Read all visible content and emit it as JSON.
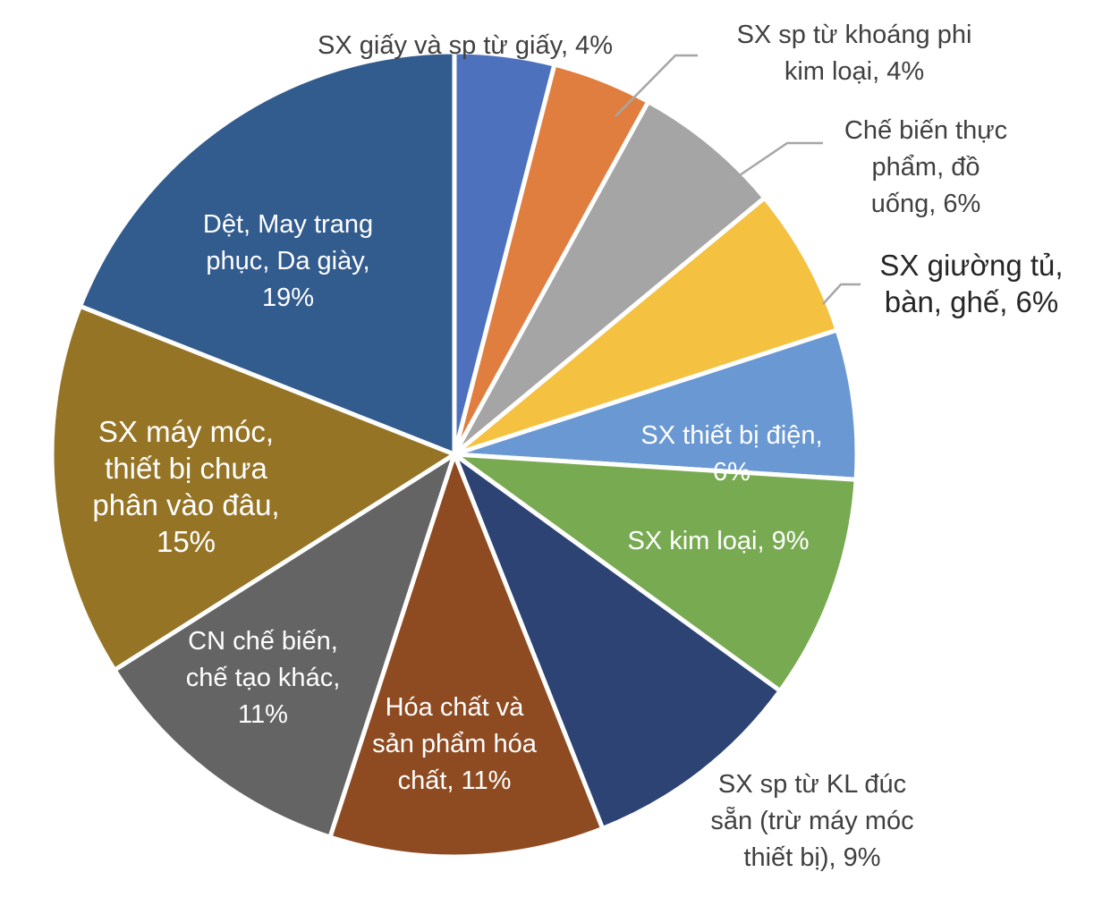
{
  "chart_data": {
    "type": "pie",
    "start_angle_deg": 0,
    "direction": "clockwise",
    "legend": "none",
    "slices": [
      {
        "label_lines": [
          "SX giấy và sp từ giấy, 4%"
        ],
        "value": 4,
        "color": "#4E71BE",
        "label_color": "#404040",
        "label_position": "outside",
        "leader": false
      },
      {
        "label_lines": [
          "SX sp từ khoáng phi",
          "kim loại, 4%"
        ],
        "value": 4,
        "color": "#E07E40",
        "label_color": "#404040",
        "label_position": "outside",
        "leader": true
      },
      {
        "label_lines": [
          "Chế biến thực",
          "phẩm, đồ",
          "uống, 6%"
        ],
        "value": 6,
        "color": "#A5A5A5",
        "label_color": "#404040",
        "label_position": "outside",
        "leader": true
      },
      {
        "label_lines": [
          "SX giường tủ,",
          "bàn, ghế, 6%"
        ],
        "value": 6,
        "color": "#F5C141",
        "label_color": "#262626",
        "label_position": "outside",
        "leader": true
      },
      {
        "label_lines": [
          "SX thiết bị điện,",
          "6%"
        ],
        "value": 6,
        "color": "#6A98D3",
        "label_color": "#ffffff",
        "label_position": "inside",
        "leader": false
      },
      {
        "label_lines": [
          "SX kim loại, 9%"
        ],
        "value": 9,
        "color": "#78AA52",
        "label_color": "#ffffff",
        "label_position": "inside",
        "leader": false
      },
      {
        "label_lines": [
          "SX sp từ KL đúc",
          "sẵn (trừ máy móc",
          "thiết bị), 9%"
        ],
        "value": 9,
        "color": "#2C4373",
        "label_color": "#404040",
        "label_position": "outside",
        "leader": false
      },
      {
        "label_lines": [
          "Hóa chất và",
          "sản phẩm hóa",
          "chất, 11%"
        ],
        "value": 11,
        "color": "#8E4B22",
        "label_color": "#ffffff",
        "label_position": "inside",
        "leader": false
      },
      {
        "label_lines": [
          "CN chế biến,",
          "chế tạo khác,",
          "11%"
        ],
        "value": 11,
        "color": "#646464",
        "label_color": "#ffffff",
        "label_position": "inside",
        "leader": false
      },
      {
        "label_lines": [
          "SX máy móc,",
          "thiết bị chưa",
          "phân vào đâu,",
          "15%"
        ],
        "value": 15,
        "color": "#957426",
        "label_color": "#ffffff",
        "label_position": "inside",
        "leader": false
      },
      {
        "label_lines": [
          "Dệt, May trang",
          "phục, Da giày,",
          "19%"
        ],
        "value": 19,
        "color": "#325B8E",
        "label_color": "#ffffff",
        "label_position": "inside",
        "leader": false
      }
    ]
  }
}
